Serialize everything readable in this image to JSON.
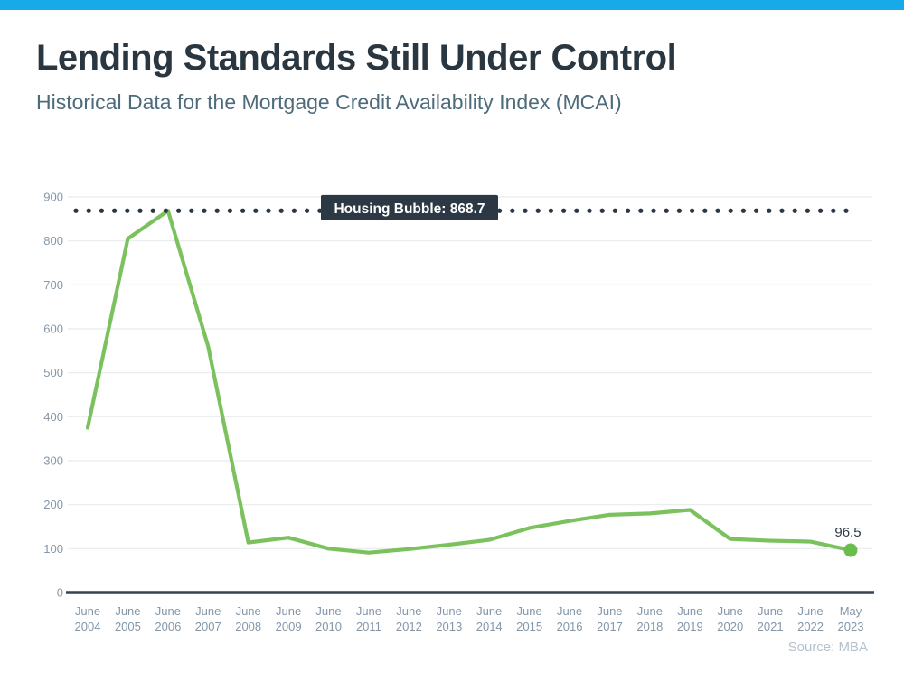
{
  "page": {
    "accent_color": "#18a9e8"
  },
  "chart_data": {
    "type": "line",
    "title": "Lending Standards Still Under Control",
    "subtitle": "Historical Data for the Mortgage Credit Availability Index (MCAI)",
    "categories": [
      "June 2004",
      "June 2005",
      "June 2006",
      "June 2007",
      "June 2008",
      "June 2009",
      "June 2010",
      "June 2011",
      "June 2012",
      "June 2013",
      "June 2014",
      "June 2015",
      "June 2016",
      "June 2017",
      "June 2018",
      "June 2019",
      "June 2020",
      "June 2021",
      "June 2022",
      "May 2023"
    ],
    "values": [
      375,
      805,
      868.7,
      560,
      114,
      125,
      100,
      91,
      99,
      109,
      120,
      147,
      163,
      177,
      180,
      188,
      122,
      118,
      116,
      96.5
    ],
    "ylim": [
      0,
      900
    ],
    "ytick_step": 100,
    "grid": true,
    "legend": "none",
    "annotation": {
      "label": "Housing Bubble: 868.7",
      "value": 868.7
    },
    "last_point_label": "96.5",
    "source": "Source: MBA",
    "colors": {
      "line": "#7bc25e",
      "end_dot": "#68bd4c",
      "annotation_bg": "#2c3945",
      "annotation_text": "#ffffff",
      "dotted_line": "#2b3844",
      "axis_line": "#37434e",
      "gridline": "#e8ebee",
      "tick_label": "#8496a8",
      "value_label": "#2c3945"
    }
  }
}
